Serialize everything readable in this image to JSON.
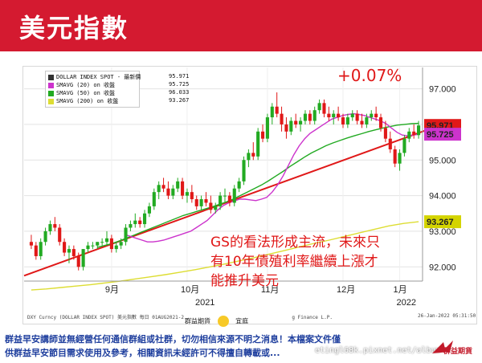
{
  "header": {
    "title": "美元指數",
    "bg_color": "#d41a30"
  },
  "chart_data": {
    "type": "line",
    "subtype": "candlestick",
    "title": "",
    "ylim": [
      91.6,
      97.6
    ],
    "yticks": [
      92.0,
      93.0,
      94.0,
      95.0,
      96.0,
      97.0
    ],
    "ytick_labels": [
      "92.000",
      "93.000",
      "94.000",
      "95.000",
      "96.000",
      "97.000"
    ],
    "x_months": [
      "9月",
      "10月",
      "11月",
      "12月",
      "1月"
    ],
    "x_years": [
      "2021",
      "2022"
    ],
    "grid": true,
    "legend_position": "top-left",
    "legend": [
      {
        "name": "DOLLAR INDEX SPOT - 最新價",
        "value": "95.971",
        "color": "#333333"
      },
      {
        "name": "SMAVG (20)  on 收盤",
        "value": "95.725",
        "color": "#cc33cc"
      },
      {
        "name": "SMAVG (50)  on 收盤",
        "value": "96.033",
        "color": "#22aa22"
      },
      {
        "name": "SMAVG (200) on 收盤",
        "value": "93.267",
        "color": "#dddd33"
      }
    ],
    "last_price_tags": [
      {
        "value": 95.971,
        "label": "95.971",
        "color": "#e01818"
      },
      {
        "value": 95.725,
        "label": "95.725",
        "color": "#cc33cc"
      },
      {
        "value": 93.267,
        "label": "93.267",
        "color": "#d4d400"
      }
    ],
    "candles": [
      [
        92.7,
        92.9,
        92.5,
        92.6
      ],
      [
        92.6,
        92.7,
        92.2,
        92.3
      ],
      [
        92.3,
        92.8,
        92.2,
        92.7
      ],
      [
        92.7,
        93.1,
        92.6,
        93.0
      ],
      [
        93.0,
        93.3,
        92.9,
        93.2
      ],
      [
        93.2,
        93.4,
        93.0,
        93.1
      ],
      [
        93.1,
        93.2,
        92.6,
        92.7
      ],
      [
        92.7,
        92.8,
        92.3,
        92.4
      ],
      [
        92.4,
        92.6,
        92.1,
        92.5
      ],
      [
        92.5,
        92.6,
        92.2,
        92.3
      ],
      [
        92.3,
        92.4,
        91.9,
        92.0
      ],
      [
        92.0,
        92.5,
        91.9,
        92.5
      ],
      [
        92.5,
        92.7,
        92.4,
        92.6
      ],
      [
        92.6,
        92.7,
        92.5,
        92.6
      ],
      [
        92.6,
        92.7,
        92.5,
        92.7
      ],
      [
        92.7,
        92.8,
        92.6,
        92.7
      ],
      [
        92.7,
        93.0,
        92.6,
        92.8
      ],
      [
        92.8,
        92.9,
        92.4,
        92.5
      ],
      [
        92.5,
        92.7,
        92.4,
        92.6
      ],
      [
        92.6,
        92.8,
        92.5,
        92.7
      ],
      [
        92.7,
        93.2,
        92.6,
        93.1
      ],
      [
        93.1,
        93.3,
        93.0,
        93.2
      ],
      [
        93.2,
        93.5,
        93.1,
        93.3
      ],
      [
        93.3,
        93.4,
        93.1,
        93.2
      ],
      [
        93.2,
        93.6,
        93.1,
        93.5
      ],
      [
        93.5,
        93.8,
        93.4,
        93.7
      ],
      [
        93.7,
        94.2,
        93.6,
        94.1
      ],
      [
        94.1,
        94.4,
        93.9,
        94.3
      ],
      [
        94.3,
        94.5,
        94.1,
        94.2
      ],
      [
        94.2,
        94.4,
        93.9,
        94.0
      ],
      [
        94.0,
        94.3,
        93.9,
        94.2
      ],
      [
        94.2,
        94.5,
        94.1,
        94.4
      ],
      [
        94.4,
        94.5,
        93.9,
        94.0
      ],
      [
        94.0,
        94.2,
        93.8,
        94.1
      ],
      [
        94.1,
        94.3,
        93.8,
        93.9
      ],
      [
        93.9,
        94.0,
        93.6,
        93.7
      ],
      [
        93.7,
        94.0,
        93.6,
        93.9
      ],
      [
        93.9,
        94.1,
        93.7,
        93.8
      ],
      [
        93.8,
        94.0,
        93.5,
        93.6
      ],
      [
        93.6,
        93.8,
        93.5,
        93.7
      ],
      [
        93.7,
        94.1,
        93.6,
        94.0
      ],
      [
        94.0,
        94.2,
        93.8,
        94.0
      ],
      [
        94.0,
        94.1,
        93.7,
        93.8
      ],
      [
        93.8,
        94.3,
        93.7,
        94.2
      ],
      [
        94.2,
        94.5,
        94.1,
        94.4
      ],
      [
        94.4,
        95.1,
        94.3,
        95.0
      ],
      [
        95.0,
        95.3,
        94.8,
        95.2
      ],
      [
        95.2,
        95.5,
        95.0,
        95.1
      ],
      [
        95.1,
        95.9,
        95.0,
        95.8
      ],
      [
        95.8,
        96.0,
        95.5,
        95.6
      ],
      [
        95.6,
        96.3,
        95.5,
        96.2
      ],
      [
        96.2,
        96.6,
        96.0,
        96.5
      ],
      [
        96.5,
        96.9,
        96.2,
        96.3
      ],
      [
        96.3,
        96.5,
        95.8,
        96.0
      ],
      [
        96.0,
        96.2,
        95.6,
        95.8
      ],
      [
        95.8,
        96.2,
        95.7,
        96.1
      ],
      [
        96.1,
        96.3,
        95.9,
        96.0
      ],
      [
        96.0,
        96.2,
        95.8,
        96.1
      ],
      [
        96.1,
        96.4,
        96.0,
        96.3
      ],
      [
        96.3,
        96.4,
        96.0,
        96.1
      ],
      [
        96.1,
        96.5,
        96.0,
        96.4
      ],
      [
        96.4,
        96.7,
        96.3,
        96.6
      ],
      [
        96.6,
        96.7,
        96.2,
        96.3
      ],
      [
        96.3,
        96.5,
        96.1,
        96.2
      ],
      [
        96.2,
        96.4,
        96.0,
        96.3
      ],
      [
        96.3,
        96.5,
        96.1,
        96.2
      ],
      [
        96.2,
        96.3,
        95.9,
        96.0
      ],
      [
        96.0,
        96.3,
        95.9,
        96.2
      ],
      [
        96.2,
        96.4,
        96.1,
        96.3
      ],
      [
        96.3,
        96.4,
        96.0,
        96.1
      ],
      [
        96.1,
        96.3,
        95.9,
        96.0
      ],
      [
        96.0,
        96.3,
        95.9,
        96.2
      ],
      [
        96.2,
        96.4,
        96.1,
        96.3
      ],
      [
        96.3,
        96.5,
        96.1,
        96.2
      ],
      [
        96.2,
        96.3,
        95.8,
        95.9
      ],
      [
        95.9,
        96.1,
        95.5,
        95.6
      ],
      [
        95.6,
        95.8,
        95.2,
        95.3
      ],
      [
        95.3,
        95.4,
        94.8,
        94.9
      ],
      [
        94.9,
        95.3,
        94.7,
        95.2
      ],
      [
        95.2,
        95.7,
        95.1,
        95.6
      ],
      [
        95.6,
        95.9,
        95.5,
        95.8
      ],
      [
        95.8,
        96.0,
        95.6,
        95.7
      ],
      [
        95.7,
        96.1,
        95.6,
        95.97
      ]
    ],
    "sma20": [
      92.9,
      92.85,
      92.8,
      92.75,
      92.7,
      92.7,
      92.72,
      92.75,
      92.8,
      92.85,
      92.9,
      92.95,
      93.0,
      93.1,
      93.2,
      93.3,
      93.45,
      93.6,
      93.72,
      93.8,
      93.85,
      93.9,
      93.9,
      93.88,
      93.86,
      93.9,
      93.95,
      94.1,
      94.3,
      94.55,
      94.85,
      95.15,
      95.4,
      95.6,
      95.75,
      95.85,
      95.95,
      96.05,
      96.15,
      96.2,
      96.25,
      96.28,
      96.3,
      96.28,
      96.25,
      96.2,
      96.15,
      96.1,
      96.02,
      95.9,
      95.78,
      95.7,
      95.68,
      95.7,
      95.72
    ],
    "sma50": [
      92.55,
      92.6,
      92.65,
      92.72,
      92.8,
      92.88,
      92.96,
      93.04,
      93.12,
      93.2,
      93.28,
      93.36,
      93.44,
      93.5,
      93.56,
      93.62,
      93.68,
      93.75,
      93.82,
      93.9,
      94.0,
      94.1,
      94.2,
      94.3,
      94.42,
      94.55,
      94.68,
      94.82,
      94.95,
      95.08,
      95.2,
      95.3,
      95.4,
      95.48,
      95.55,
      95.62,
      95.68,
      95.74,
      95.8,
      95.85,
      95.9,
      95.94,
      95.98,
      96.0,
      96.02,
      96.03
    ],
    "sma200": [
      91.35,
      91.38,
      91.42,
      91.46,
      91.5,
      91.55,
      91.6,
      91.66,
      91.72,
      91.78,
      91.85,
      91.92,
      92.0,
      92.08,
      92.17,
      92.26,
      92.36,
      92.46,
      92.56,
      92.66,
      92.75,
      92.85,
      92.95,
      93.05,
      93.15,
      93.22,
      93.267
    ],
    "trendline": {
      "start": 91.75,
      "end": 95.85,
      "color": "#e01818"
    },
    "annotations": [
      "+0.07%",
      "GS的看法形成主流，未來只有10年債殖利率繼續上漲才能推升美元"
    ]
  },
  "annotation": {
    "change": "+0.07%",
    "lines": [
      "GS的看法形成主流，未來只",
      "有10年債殖利率繼續上漲才",
      "能推升美元"
    ]
  },
  "footer": {
    "source": "DXY Curncy (DOLLAR INDEX SPOT) 美元指數  每日 01AUG2021-2...",
    "source_tail": "g Finance L.P.",
    "date": "26-Jan-2022 05:31:50",
    "logo_text": "群益期貨",
    "logo_text2": "宜庭"
  },
  "disclaimer": {
    "line1": "群益早安講師並無經營任何通信群組或社群，切勿相信來源不明之消息！本檔案文件僅",
    "line2": "供群益早安節目需求使用及參考，相關資訊未經許可不得擅自轉載或..."
  },
  "watermark": "etingl68k.pixnet.net/album",
  "brand": {
    "name": "群益期貨",
    "color": "#c21a2a"
  }
}
